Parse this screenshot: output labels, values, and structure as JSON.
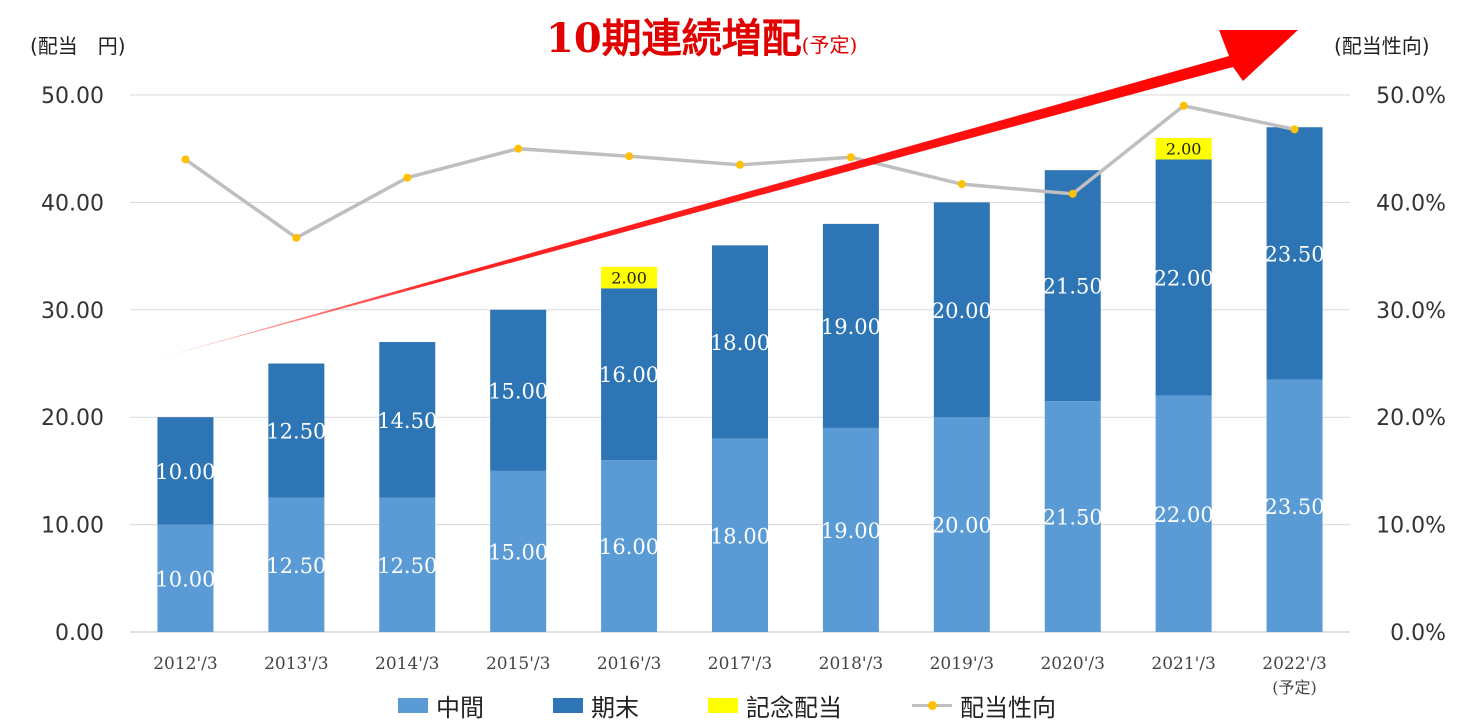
{
  "title": {
    "main": "10期連続増配",
    "sub": "(予定)"
  },
  "left_axis_unit": "(配当　円)",
  "right_axis_unit": "(配当性向)",
  "chart_data": {
    "type": "bar",
    "stacked": true,
    "categories": [
      "2012'/3",
      "2013'/3",
      "2014'/3",
      "2015'/3",
      "2016'/3",
      "2017'/3",
      "2018'/3",
      "2019'/3",
      "2020'/3",
      "2021'/3",
      "2022'/3"
    ],
    "category_notes": [
      "",
      "",
      "",
      "",
      "",
      "",
      "",
      "",
      "",
      "",
      "(予定)"
    ],
    "left_axis": {
      "ylim": [
        0,
        50
      ],
      "ticks": [
        "0.00",
        "10.00",
        "20.00",
        "30.00",
        "40.00",
        "50.00"
      ]
    },
    "right_axis": {
      "ylim": [
        0,
        50
      ],
      "ticks": [
        "0.0%",
        "10.0%",
        "20.0%",
        "30.0%",
        "40.0%",
        "50.0%"
      ]
    },
    "series": [
      {
        "name": "中間",
        "type": "bar",
        "color": "#5b9bd5",
        "values": [
          10,
          12.5,
          12.5,
          15,
          16,
          18,
          19,
          20,
          21.5,
          22,
          23.5
        ],
        "labels": [
          "10.00",
          "12.50",
          "12.50",
          "15.00",
          "16.00",
          "18.00",
          "19.00",
          "20.00",
          "21.50",
          "22.00",
          "23.50"
        ]
      },
      {
        "name": "期末",
        "type": "bar",
        "color": "#2e75b6",
        "values": [
          10,
          12.5,
          14.5,
          15,
          16,
          18,
          19,
          20,
          21.5,
          22,
          23.5
        ],
        "labels": [
          "10.00",
          "12.50",
          "14.50",
          "15.00",
          "16.00",
          "18.00",
          "19.00",
          "20.00",
          "21.50",
          "22.00",
          "23.50"
        ]
      },
      {
        "name": "記念配当",
        "type": "bar",
        "color": "#ffff00",
        "values": [
          0,
          0,
          0,
          0,
          2,
          0,
          0,
          0,
          0,
          2,
          0
        ],
        "labels": [
          "",
          "",
          "",
          "",
          "2.00",
          "",
          "",
          "",
          "",
          "2.00",
          ""
        ]
      },
      {
        "name": "配当性向",
        "type": "line",
        "axis": "right",
        "color": "#bfbfbf",
        "marker_color": "#ffc000",
        "values": [
          44.0,
          36.7,
          42.3,
          45.0,
          44.3,
          43.5,
          44.2,
          41.7,
          40.8,
          49.0,
          46.8
        ]
      }
    ],
    "grid": true,
    "legend": "bottom"
  }
}
